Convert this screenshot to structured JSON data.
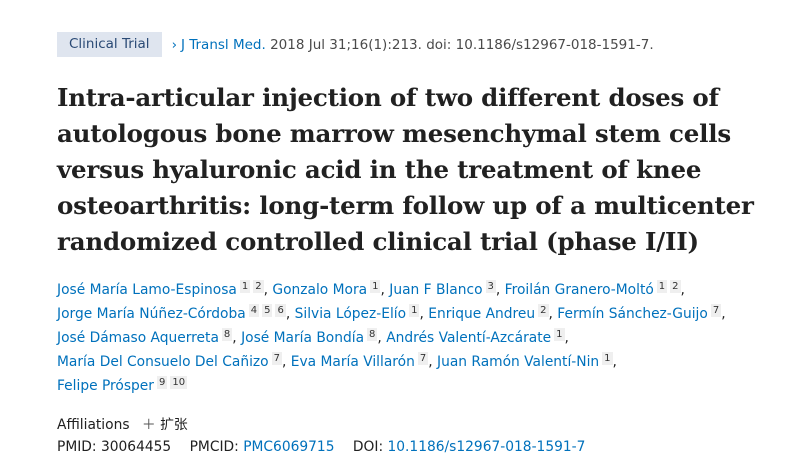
{
  "header": {
    "badge": "Clinical Trial",
    "journal": "J Transl Med.",
    "citation": " 2018 Jul 31;16(1):213. doi: 10.1186/s12967-018-1591-7."
  },
  "title": "Intra-articular injection of two different doses of autologous bone marrow mesenchymal stem cells versus hyaluronic acid in the treatment of knee osteoarthritis: long-term follow up of a multicenter randomized controlled clinical trial (phase I/II)",
  "authors": [
    {
      "name": "José María Lamo-Espinosa",
      "affs": [
        "1",
        "2"
      ]
    },
    {
      "name": "Gonzalo Mora",
      "affs": [
        "1"
      ]
    },
    {
      "name": "Juan F Blanco",
      "affs": [
        "3"
      ]
    },
    {
      "name": "Froilán Granero-Moltó",
      "affs": [
        "1",
        "2"
      ],
      "br": true
    },
    {
      "name": "Jorge María Núñez-Córdoba",
      "affs": [
        "4",
        "5",
        "6"
      ]
    },
    {
      "name": "Silvia López-Elío",
      "affs": [
        "1"
      ]
    },
    {
      "name": "Enrique Andreu",
      "affs": [
        "2"
      ]
    },
    {
      "name": "Fermín Sánchez-Guijo",
      "affs": [
        "7"
      ],
      "br": true
    },
    {
      "name": "José Dámaso Aquerreta",
      "affs": [
        "8"
      ]
    },
    {
      "name": "José María Bondía",
      "affs": [
        "8"
      ]
    },
    {
      "name": "Andrés Valentí-Azcárate",
      "affs": [
        "1"
      ],
      "br": true
    },
    {
      "name": "María Del Consuelo Del Cañizo",
      "affs": [
        "7"
      ]
    },
    {
      "name": "Eva María Villarón",
      "affs": [
        "7"
      ]
    },
    {
      "name": "Juan Ramón Valentí-Nin",
      "affs": [
        "1"
      ],
      "br": true
    },
    {
      "name": "Felipe Prósper",
      "affs": [
        "9",
        "10"
      ]
    }
  ],
  "affiliations": {
    "label": "Affiliations",
    "expand_icon": "plus-icon",
    "expand_label": "扩张"
  },
  "ids": {
    "pmid_label": "PMID:",
    "pmid": "30064455",
    "pmcid_label": "PMCID:",
    "pmcid": "PMC6069715",
    "doi_label": "DOI:",
    "doi": "10.1186/s12967-018-1591-7"
  },
  "colors": {
    "link": "#0071bc",
    "badge_bg": "#dfe5ef"
  }
}
